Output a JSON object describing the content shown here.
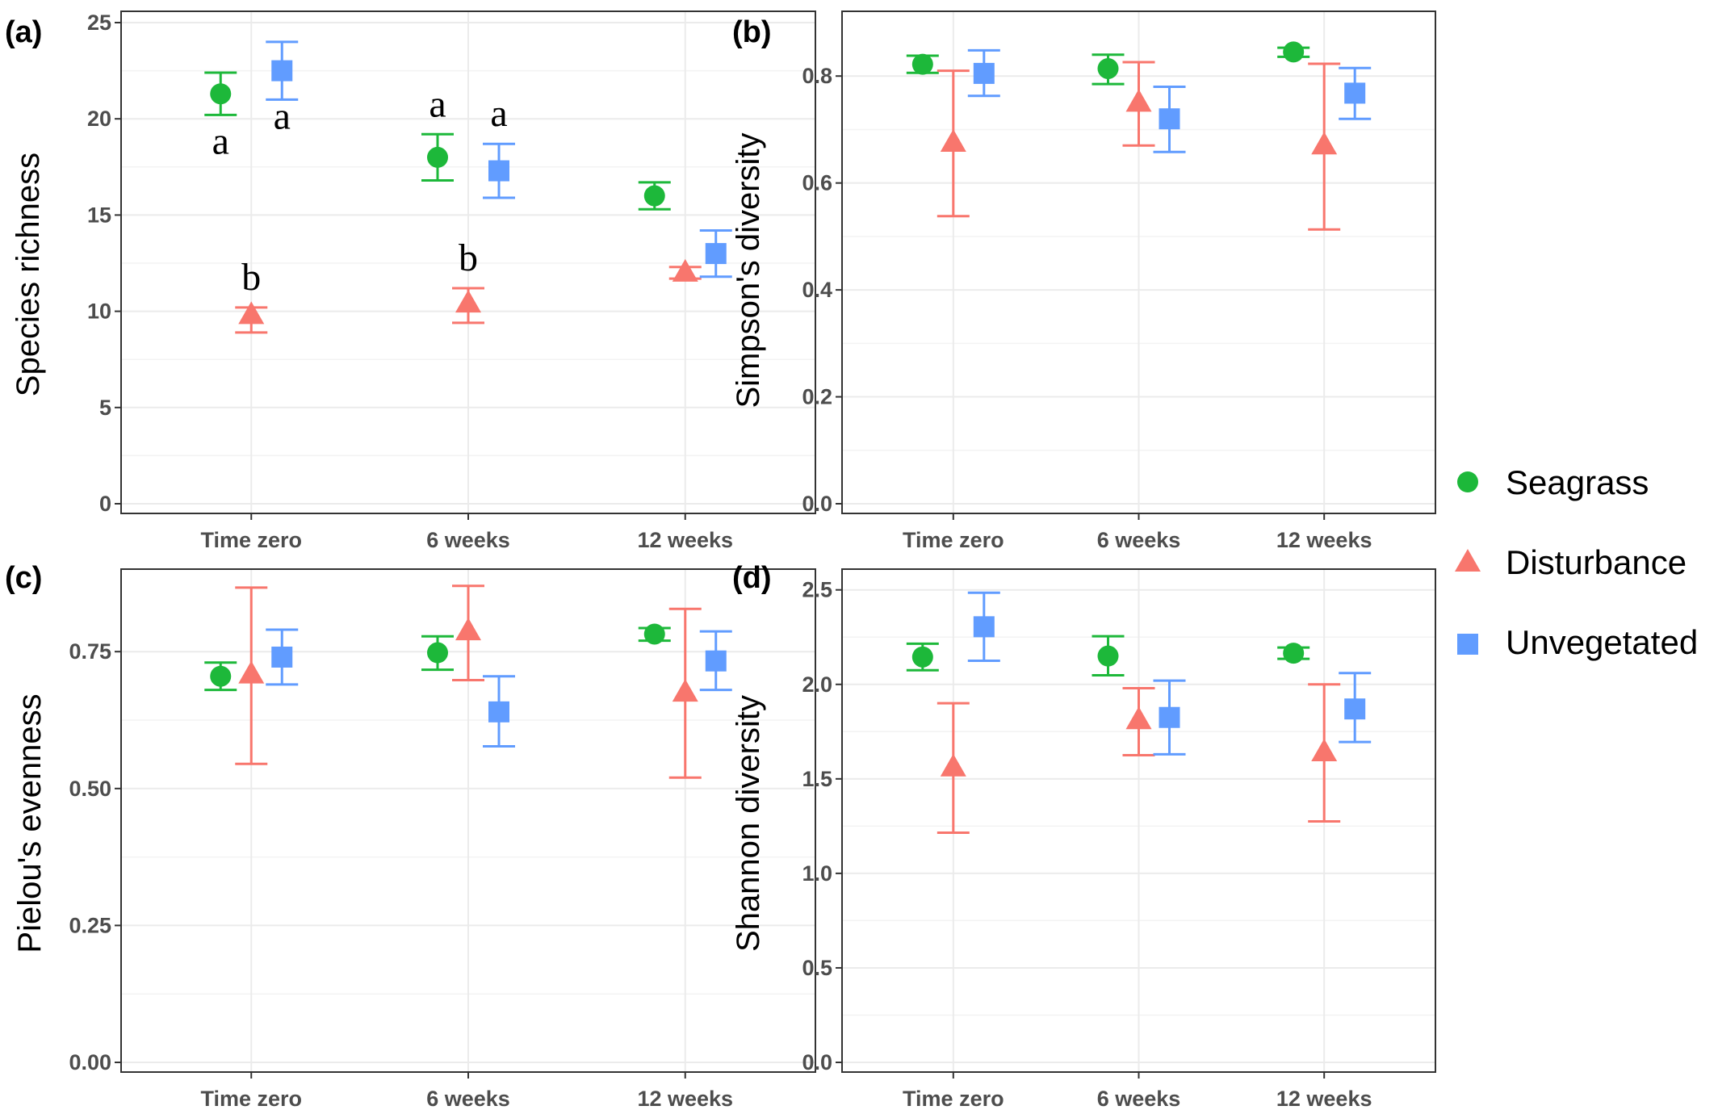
{
  "chart_data": [
    {
      "type": "scatter",
      "panel_label": "(a)",
      "ylabel": "Species richness",
      "categories": [
        "Time zero",
        "6 weeks",
        "12 weeks"
      ],
      "ylim": [
        0,
        25
      ],
      "yticks": [
        "0",
        "5",
        "10",
        "15",
        "20",
        "25"
      ],
      "grid": true,
      "series": [
        {
          "name": "Seagrass",
          "values": [
            21.3,
            18.0,
            16.0
          ],
          "lower": [
            20.2,
            16.8,
            15.3
          ],
          "upper": [
            22.4,
            19.2,
            16.7
          ]
        },
        {
          "name": "Disturbance",
          "values": [
            9.8,
            10.4,
            12.0
          ],
          "lower": [
            8.9,
            9.4,
            11.7
          ],
          "upper": [
            10.2,
            11.2,
            12.3
          ]
        },
        {
          "name": "Unvegetated",
          "values": [
            22.5,
            17.3,
            13.0
          ],
          "lower": [
            21.0,
            15.9,
            11.8
          ],
          "upper": [
            24.0,
            18.7,
            14.2
          ]
        }
      ],
      "annotations": [
        {
          "series": "Seagrass",
          "category": "Time zero",
          "text": "a"
        },
        {
          "series": "Unvegetated",
          "category": "Time zero",
          "text": "a"
        },
        {
          "series": "Disturbance",
          "category": "Time zero",
          "text": "b"
        },
        {
          "series": "Seagrass",
          "category": "6 weeks",
          "text": "a"
        },
        {
          "series": "Unvegetated",
          "category": "6 weeks",
          "text": "a"
        },
        {
          "series": "Disturbance",
          "category": "6 weeks",
          "text": "b"
        }
      ]
    },
    {
      "type": "scatter",
      "panel_label": "(b)",
      "ylabel": "Simpson's diversity",
      "categories": [
        "Time zero",
        "6 weeks",
        "12 weeks"
      ],
      "ylim": [
        0,
        0.9
      ],
      "yticks": [
        "0.0",
        "0.2",
        "0.4",
        "0.6",
        "0.8"
      ],
      "grid": true,
      "series": [
        {
          "name": "Seagrass",
          "values": [
            0.822,
            0.814,
            0.845
          ],
          "lower": [
            0.806,
            0.785,
            0.836
          ],
          "upper": [
            0.838,
            0.84,
            0.853
          ]
        },
        {
          "name": "Disturbance",
          "values": [
            0.675,
            0.75,
            0.67
          ],
          "lower": [
            0.538,
            0.67,
            0.513
          ],
          "upper": [
            0.81,
            0.826,
            0.823
          ]
        },
        {
          "name": "Unvegetated",
          "values": [
            0.805,
            0.72,
            0.768
          ],
          "lower": [
            0.763,
            0.658,
            0.72
          ],
          "upper": [
            0.848,
            0.78,
            0.815
          ]
        }
      ]
    },
    {
      "type": "scatter",
      "panel_label": "(c)",
      "ylabel": "Pielou's evenness",
      "categories": [
        "Time zero",
        "6 weeks",
        "12 weeks"
      ],
      "ylim": [
        0,
        0.88
      ],
      "yticks": [
        "0.00",
        "0.25",
        "0.50",
        "0.75"
      ],
      "grid": true,
      "series": [
        {
          "name": "Seagrass",
          "values": [
            0.705,
            0.748,
            0.782
          ],
          "lower": [
            0.68,
            0.717,
            0.77
          ],
          "upper": [
            0.73,
            0.778,
            0.793
          ]
        },
        {
          "name": "Disturbance",
          "values": [
            0.708,
            0.787,
            0.675
          ],
          "lower": [
            0.545,
            0.698,
            0.52
          ],
          "upper": [
            0.867,
            0.87,
            0.828
          ]
        },
        {
          "name": "Unvegetated",
          "values": [
            0.74,
            0.64,
            0.733
          ],
          "lower": [
            0.69,
            0.577,
            0.68
          ],
          "upper": [
            0.79,
            0.705,
            0.787
          ]
        }
      ]
    },
    {
      "type": "scatter",
      "panel_label": "(d)",
      "ylabel": "Shannon diversity",
      "categories": [
        "Time zero",
        "6 weeks",
        "12 weeks"
      ],
      "ylim": [
        0,
        2.55
      ],
      "yticks": [
        "0.0",
        "0.5",
        "1.0",
        "1.5",
        "2.0",
        "2.5"
      ],
      "grid": true,
      "series": [
        {
          "name": "Seagrass",
          "values": [
            2.145,
            2.15,
            2.165
          ],
          "lower": [
            2.075,
            2.048,
            2.135
          ],
          "upper": [
            2.215,
            2.255,
            2.195
          ]
        },
        {
          "name": "Disturbance",
          "values": [
            1.56,
            1.81,
            1.64
          ],
          "lower": [
            1.215,
            1.625,
            1.275
          ],
          "upper": [
            1.9,
            1.98,
            2.0
          ]
        },
        {
          "name": "Unvegetated",
          "values": [
            2.305,
            1.825,
            1.87
          ],
          "lower": [
            2.125,
            1.63,
            1.695
          ],
          "upper": [
            2.485,
            2.02,
            2.06
          ]
        }
      ]
    }
  ],
  "legend": {
    "position": "right",
    "items": [
      {
        "label": "Seagrass",
        "shape": "circle",
        "color": "#1db83a"
      },
      {
        "label": "Disturbance",
        "shape": "triangle",
        "color": "#f8766d"
      },
      {
        "label": "Unvegetated",
        "shape": "square",
        "color": "#619cff"
      }
    ]
  },
  "colors": {
    "Seagrass": "#1db83a",
    "Disturbance": "#f8766d",
    "Unvegetated": "#619cff",
    "grid": "#ebebeb",
    "frame": "#333333"
  }
}
